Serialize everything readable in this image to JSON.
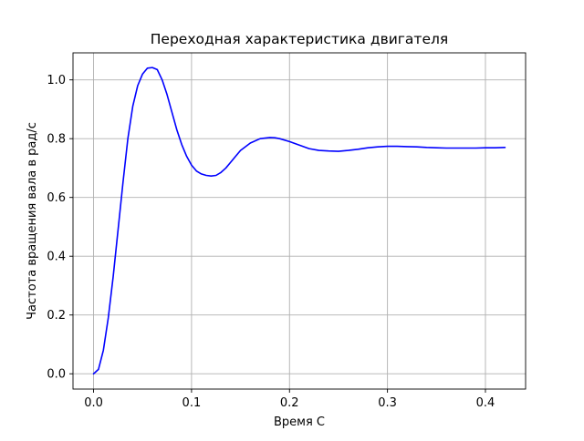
{
  "chart_data": {
    "type": "line",
    "title": "Переходная характеристика двигателя",
    "xlabel": "Время С",
    "ylabel": "Частота вращения вала в рад/с",
    "xlim": [
      -0.021,
      0.441
    ],
    "ylim": [
      -0.052,
      1.092
    ],
    "xticks": [
      0.0,
      0.1,
      0.2,
      0.3,
      0.4
    ],
    "xtick_labels": [
      "0.0",
      "0.1",
      "0.2",
      "0.3",
      "0.4"
    ],
    "yticks": [
      0.0,
      0.2,
      0.4,
      0.6,
      0.8,
      1.0
    ],
    "ytick_labels": [
      "0.0",
      "0.2",
      "0.4",
      "0.6",
      "0.8",
      "1.0"
    ],
    "grid": true,
    "series": [
      {
        "color": "#0000ff",
        "x": [
          0.0,
          0.005,
          0.01,
          0.015,
          0.02,
          0.025,
          0.03,
          0.035,
          0.04,
          0.045,
          0.05,
          0.055,
          0.06,
          0.065,
          0.07,
          0.075,
          0.08,
          0.085,
          0.09,
          0.095,
          0.1,
          0.105,
          0.11,
          0.115,
          0.12,
          0.125,
          0.13,
          0.135,
          0.14,
          0.145,
          0.15,
          0.16,
          0.17,
          0.18,
          0.185,
          0.19,
          0.2,
          0.21,
          0.22,
          0.23,
          0.24,
          0.25,
          0.26,
          0.27,
          0.28,
          0.29,
          0.3,
          0.31,
          0.32,
          0.33,
          0.34,
          0.35,
          0.36,
          0.37,
          0.38,
          0.39,
          0.4,
          0.41,
          0.42
        ],
        "y": [
          0.0,
          0.015,
          0.08,
          0.19,
          0.33,
          0.49,
          0.65,
          0.8,
          0.91,
          0.98,
          1.02,
          1.04,
          1.042,
          1.035,
          1.0,
          0.95,
          0.89,
          0.83,
          0.78,
          0.74,
          0.71,
          0.69,
          0.68,
          0.675,
          0.673,
          0.675,
          0.685,
          0.7,
          0.72,
          0.74,
          0.76,
          0.785,
          0.8,
          0.804,
          0.803,
          0.8,
          0.79,
          0.778,
          0.766,
          0.76,
          0.758,
          0.757,
          0.76,
          0.764,
          0.769,
          0.772,
          0.774,
          0.774,
          0.773,
          0.772,
          0.77,
          0.769,
          0.768,
          0.768,
          0.768,
          0.768,
          0.769,
          0.769,
          0.77
        ]
      }
    ]
  }
}
